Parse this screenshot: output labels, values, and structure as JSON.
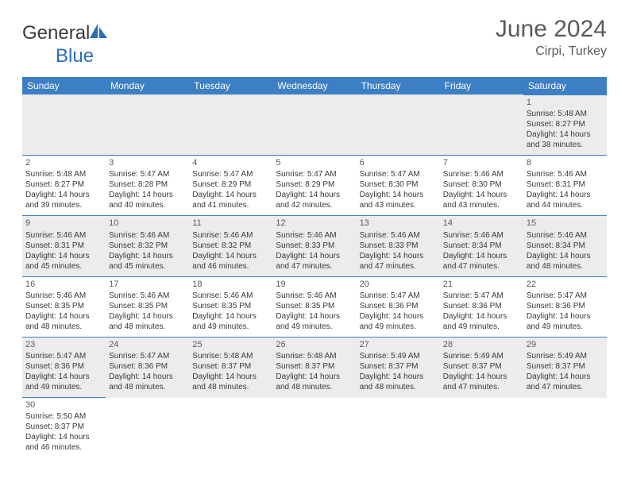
{
  "logo": {
    "text_general": "General",
    "text_blue": "Blue",
    "shape_color": "#2a6db8"
  },
  "title": {
    "month": "June 2024",
    "location": "Cirpi, Turkey"
  },
  "colors": {
    "header_bg": "#3d7fc4",
    "header_text": "#ffffff",
    "row_alt_bg": "#ececec",
    "cell_border": "#3d7fc4",
    "text_dark": "#3a3a3a",
    "text_gray": "#5a5a5a"
  },
  "day_headers": [
    "Sunday",
    "Monday",
    "Tuesday",
    "Wednesday",
    "Thursday",
    "Friday",
    "Saturday"
  ],
  "weeks": [
    {
      "alt": true,
      "cells": [
        null,
        null,
        null,
        null,
        null,
        null,
        {
          "day": "1",
          "sunrise": "Sunrise: 5:48 AM",
          "sunset": "Sunset: 8:27 PM",
          "daylight1": "Daylight: 14 hours",
          "daylight2": "and 38 minutes."
        }
      ]
    },
    {
      "alt": false,
      "cells": [
        {
          "day": "2",
          "sunrise": "Sunrise: 5:48 AM",
          "sunset": "Sunset: 8:27 PM",
          "daylight1": "Daylight: 14 hours",
          "daylight2": "and 39 minutes."
        },
        {
          "day": "3",
          "sunrise": "Sunrise: 5:47 AM",
          "sunset": "Sunset: 8:28 PM",
          "daylight1": "Daylight: 14 hours",
          "daylight2": "and 40 minutes."
        },
        {
          "day": "4",
          "sunrise": "Sunrise: 5:47 AM",
          "sunset": "Sunset: 8:29 PM",
          "daylight1": "Daylight: 14 hours",
          "daylight2": "and 41 minutes."
        },
        {
          "day": "5",
          "sunrise": "Sunrise: 5:47 AM",
          "sunset": "Sunset: 8:29 PM",
          "daylight1": "Daylight: 14 hours",
          "daylight2": "and 42 minutes."
        },
        {
          "day": "6",
          "sunrise": "Sunrise: 5:47 AM",
          "sunset": "Sunset: 8:30 PM",
          "daylight1": "Daylight: 14 hours",
          "daylight2": "and 43 minutes."
        },
        {
          "day": "7",
          "sunrise": "Sunrise: 5:46 AM",
          "sunset": "Sunset: 8:30 PM",
          "daylight1": "Daylight: 14 hours",
          "daylight2": "and 43 minutes."
        },
        {
          "day": "8",
          "sunrise": "Sunrise: 5:46 AM",
          "sunset": "Sunset: 8:31 PM",
          "daylight1": "Daylight: 14 hours",
          "daylight2": "and 44 minutes."
        }
      ]
    },
    {
      "alt": true,
      "cells": [
        {
          "day": "9",
          "sunrise": "Sunrise: 5:46 AM",
          "sunset": "Sunset: 8:31 PM",
          "daylight1": "Daylight: 14 hours",
          "daylight2": "and 45 minutes."
        },
        {
          "day": "10",
          "sunrise": "Sunrise: 5:46 AM",
          "sunset": "Sunset: 8:32 PM",
          "daylight1": "Daylight: 14 hours",
          "daylight2": "and 45 minutes."
        },
        {
          "day": "11",
          "sunrise": "Sunrise: 5:46 AM",
          "sunset": "Sunset: 8:32 PM",
          "daylight1": "Daylight: 14 hours",
          "daylight2": "and 46 minutes."
        },
        {
          "day": "12",
          "sunrise": "Sunrise: 5:46 AM",
          "sunset": "Sunset: 8:33 PM",
          "daylight1": "Daylight: 14 hours",
          "daylight2": "and 47 minutes."
        },
        {
          "day": "13",
          "sunrise": "Sunrise: 5:46 AM",
          "sunset": "Sunset: 8:33 PM",
          "daylight1": "Daylight: 14 hours",
          "daylight2": "and 47 minutes."
        },
        {
          "day": "14",
          "sunrise": "Sunrise: 5:46 AM",
          "sunset": "Sunset: 8:34 PM",
          "daylight1": "Daylight: 14 hours",
          "daylight2": "and 47 minutes."
        },
        {
          "day": "15",
          "sunrise": "Sunrise: 5:46 AM",
          "sunset": "Sunset: 8:34 PM",
          "daylight1": "Daylight: 14 hours",
          "daylight2": "and 48 minutes."
        }
      ]
    },
    {
      "alt": false,
      "cells": [
        {
          "day": "16",
          "sunrise": "Sunrise: 5:46 AM",
          "sunset": "Sunset: 8:35 PM",
          "daylight1": "Daylight: 14 hours",
          "daylight2": "and 48 minutes."
        },
        {
          "day": "17",
          "sunrise": "Sunrise: 5:46 AM",
          "sunset": "Sunset: 8:35 PM",
          "daylight1": "Daylight: 14 hours",
          "daylight2": "and 48 minutes."
        },
        {
          "day": "18",
          "sunrise": "Sunrise: 5:46 AM",
          "sunset": "Sunset: 8:35 PM",
          "daylight1": "Daylight: 14 hours",
          "daylight2": "and 49 minutes."
        },
        {
          "day": "19",
          "sunrise": "Sunrise: 5:46 AM",
          "sunset": "Sunset: 8:35 PM",
          "daylight1": "Daylight: 14 hours",
          "daylight2": "and 49 minutes."
        },
        {
          "day": "20",
          "sunrise": "Sunrise: 5:47 AM",
          "sunset": "Sunset: 8:36 PM",
          "daylight1": "Daylight: 14 hours",
          "daylight2": "and 49 minutes."
        },
        {
          "day": "21",
          "sunrise": "Sunrise: 5:47 AM",
          "sunset": "Sunset: 8:36 PM",
          "daylight1": "Daylight: 14 hours",
          "daylight2": "and 49 minutes."
        },
        {
          "day": "22",
          "sunrise": "Sunrise: 5:47 AM",
          "sunset": "Sunset: 8:36 PM",
          "daylight1": "Daylight: 14 hours",
          "daylight2": "and 49 minutes."
        }
      ]
    },
    {
      "alt": true,
      "cells": [
        {
          "day": "23",
          "sunrise": "Sunrise: 5:47 AM",
          "sunset": "Sunset: 8:36 PM",
          "daylight1": "Daylight: 14 hours",
          "daylight2": "and 49 minutes."
        },
        {
          "day": "24",
          "sunrise": "Sunrise: 5:47 AM",
          "sunset": "Sunset: 8:36 PM",
          "daylight1": "Daylight: 14 hours",
          "daylight2": "and 48 minutes."
        },
        {
          "day": "25",
          "sunrise": "Sunrise: 5:48 AM",
          "sunset": "Sunset: 8:37 PM",
          "daylight1": "Daylight: 14 hours",
          "daylight2": "and 48 minutes."
        },
        {
          "day": "26",
          "sunrise": "Sunrise: 5:48 AM",
          "sunset": "Sunset: 8:37 PM",
          "daylight1": "Daylight: 14 hours",
          "daylight2": "and 48 minutes."
        },
        {
          "day": "27",
          "sunrise": "Sunrise: 5:49 AM",
          "sunset": "Sunset: 8:37 PM",
          "daylight1": "Daylight: 14 hours",
          "daylight2": "and 48 minutes."
        },
        {
          "day": "28",
          "sunrise": "Sunrise: 5:49 AM",
          "sunset": "Sunset: 8:37 PM",
          "daylight1": "Daylight: 14 hours",
          "daylight2": "and 47 minutes."
        },
        {
          "day": "29",
          "sunrise": "Sunrise: 5:49 AM",
          "sunset": "Sunset: 8:37 PM",
          "daylight1": "Daylight: 14 hours",
          "daylight2": "and 47 minutes."
        }
      ]
    },
    {
      "alt": false,
      "cells": [
        {
          "day": "30",
          "sunrise": "Sunrise: 5:50 AM",
          "sunset": "Sunset: 8:37 PM",
          "daylight1": "Daylight: 14 hours",
          "daylight2": "and 46 minutes."
        },
        null,
        null,
        null,
        null,
        null,
        null
      ]
    }
  ]
}
